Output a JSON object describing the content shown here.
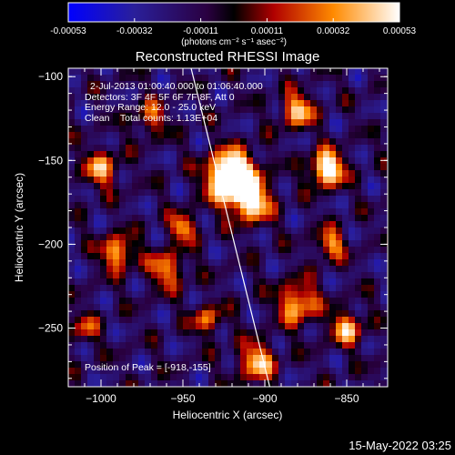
{
  "colorbar": {
    "tick_labels": [
      "-0.00053",
      "-0.00032",
      "-0.00011",
      "0.00011",
      "0.00032",
      "0.00053"
    ],
    "unit_label": "(photons cm⁻² s⁻¹ asec⁻²)"
  },
  "image": {
    "title": "Reconstructed RHESSI Image",
    "info_lines": [
      "2-Jul-2013 01:00:40.000 to 01:06:40.000",
      "Detectors: 3F 4F 5F 6F 7F 8F, Att 0",
      "Energy Range: 12.0 - 25.0 keV",
      "Clean    Total counts: 1.13E+04"
    ],
    "peak_label": "Position of Peak = [-918,-155]",
    "xlabel": "Heliocentric X (arcsec)",
    "ylabel": "Heliocentric Y (arcsec)",
    "x_range": [
      -1020,
      -825
    ],
    "y_range": [
      -285,
      -95
    ],
    "x_ticks": [
      {
        "value": -1000,
        "label": "−1000"
      },
      {
        "value": -950,
        "label": "−950"
      },
      {
        "value": -900,
        "label": "−900"
      },
      {
        "value": -850,
        "label": "−850"
      }
    ],
    "y_ticks": [
      {
        "value": -100,
        "label": "−100"
      },
      {
        "value": -150,
        "label": "−150"
      },
      {
        "value": -200,
        "label": "−200"
      },
      {
        "value": -250,
        "label": "−250"
      }
    ],
    "limb_line": [
      [
        -945,
        -95
      ],
      [
        -897,
        -285
      ]
    ],
    "peak_position": [
      -918,
      -155
    ]
  },
  "footer": {
    "timestamp": "15-May-2022 03:25"
  }
}
